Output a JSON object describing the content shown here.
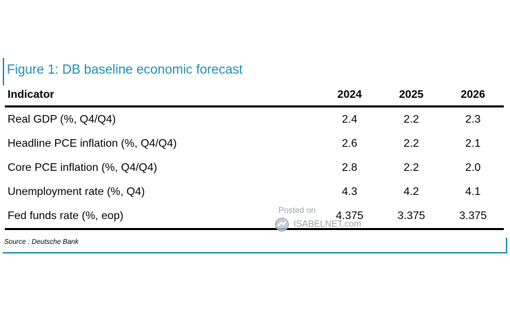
{
  "title": "Figure 1: DB baseline economic forecast",
  "table": {
    "headers": [
      "Indicator",
      "2024",
      "2025",
      "2026"
    ],
    "rows": [
      [
        "Real GDP (%, Q4/Q4)",
        "2.4",
        "2.2",
        "2.3"
      ],
      [
        "Headline PCE inflation (%, Q4/Q4)",
        "2.6",
        "2.2",
        "2.1"
      ],
      [
        "Core PCE inflation (%, Q4/Q4)",
        "2.8",
        "2.2",
        "2.0"
      ],
      [
        "Unemployment rate (%, Q4)",
        "4.3",
        "4.2",
        "4.1"
      ],
      [
        "Fed funds rate (%, eop)",
        "4.375",
        "3.375",
        "3.375"
      ]
    ]
  },
  "source": "Source : Deutsche Bank",
  "watermark": {
    "posted": "Posted on",
    "brand": "ISABELNET.com"
  },
  "colors": {
    "accent": "#1b8fb8"
  }
}
